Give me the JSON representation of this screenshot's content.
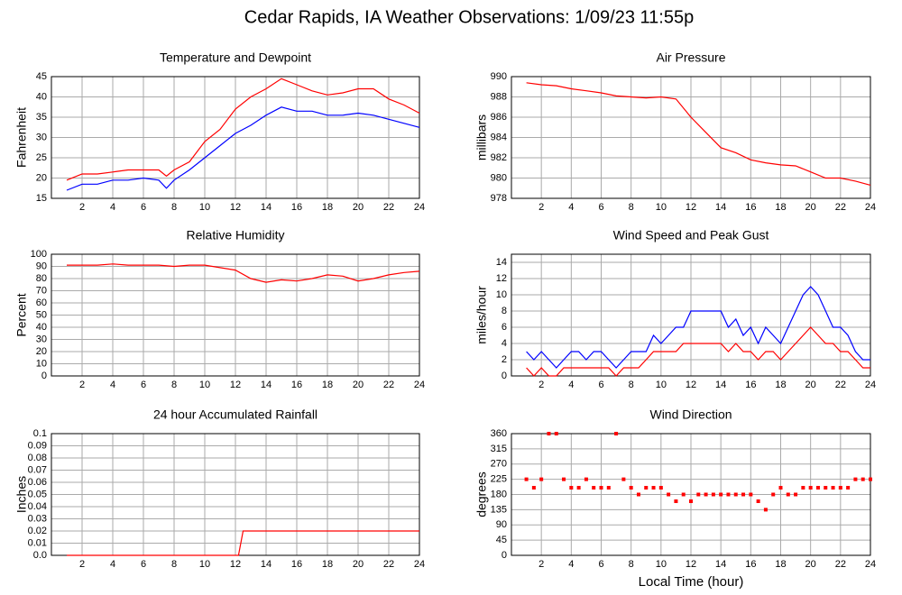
{
  "title": "Cedar Rapids, IA Weather Observations: 1/09/23 11:55p",
  "chart_data": [
    {
      "type": "line",
      "title": "Temperature and Dewpoint",
      "ylabel": "Fahrenheit",
      "xlim": [
        0,
        24
      ],
      "xticks": [
        2,
        4,
        6,
        8,
        10,
        12,
        14,
        16,
        18,
        20,
        22,
        24
      ],
      "ylim": [
        15,
        45
      ],
      "yticks": [
        15,
        20,
        25,
        30,
        35,
        40,
        45
      ],
      "grid": true,
      "x": [
        1,
        2,
        3,
        4,
        5,
        6,
        7,
        7.5,
        8,
        9,
        10,
        11,
        12,
        13,
        14,
        15,
        16,
        17,
        18,
        19,
        20,
        21,
        22,
        23,
        24
      ],
      "series": [
        {
          "color": "#ff0000",
          "values": [
            19.5,
            21,
            21,
            21.5,
            22,
            22,
            22,
            20.5,
            22,
            24,
            29,
            32,
            37,
            40,
            42,
            44.5,
            43,
            41.5,
            40.5,
            41,
            42,
            42,
            39.5,
            38,
            36
          ]
        },
        {
          "color": "#0000ff",
          "values": [
            17,
            18.5,
            18.5,
            19.5,
            19.5,
            20,
            19.5,
            17.5,
            19.5,
            22,
            25,
            28,
            31,
            33,
            35.5,
            37.5,
            36.5,
            36.5,
            35.5,
            35.5,
            36,
            35.5,
            34.5,
            33.5,
            32.5
          ]
        }
      ]
    },
    {
      "type": "line",
      "title": "Air Pressure",
      "ylabel": "millibars",
      "xlim": [
        0,
        24
      ],
      "xticks": [
        2,
        4,
        6,
        8,
        10,
        12,
        14,
        16,
        18,
        20,
        22,
        24
      ],
      "ylim": [
        978,
        990
      ],
      "yticks": [
        978,
        980,
        982,
        984,
        986,
        988,
        990
      ],
      "grid": true,
      "x": [
        1,
        2,
        3,
        4,
        5,
        6,
        7,
        8,
        9,
        10,
        11,
        12,
        13,
        14,
        15,
        16,
        17,
        18,
        19,
        20,
        21,
        22,
        23,
        24
      ],
      "series": [
        {
          "color": "#ff0000",
          "values": [
            989.4,
            989.2,
            989.1,
            988.8,
            988.6,
            988.4,
            988.1,
            988.0,
            987.9,
            988.0,
            987.8,
            986.0,
            984.5,
            983.0,
            982.5,
            981.8,
            981.5,
            981.3,
            981.2,
            980.6,
            980.0,
            980.0,
            979.7,
            979.3
          ]
        }
      ]
    },
    {
      "type": "line",
      "title": "Relative Humidity",
      "ylabel": "Percent",
      "xlim": [
        0,
        24
      ],
      "xticks": [
        2,
        4,
        6,
        8,
        10,
        12,
        14,
        16,
        18,
        20,
        22,
        24
      ],
      "ylim": [
        0,
        100
      ],
      "yticks": [
        0,
        10,
        20,
        30,
        40,
        50,
        60,
        70,
        80,
        90,
        100
      ],
      "grid": true,
      "x": [
        1,
        2,
        3,
        4,
        5,
        6,
        7,
        8,
        9,
        10,
        11,
        12,
        13,
        14,
        15,
        16,
        17,
        18,
        19,
        20,
        21,
        22,
        23,
        24
      ],
      "series": [
        {
          "color": "#ff0000",
          "values": [
            91,
            91,
            91,
            92,
            91,
            91,
            91,
            90,
            91,
            91,
            89,
            87,
            80,
            77,
            79,
            78,
            80,
            83,
            82,
            78,
            80,
            83,
            85,
            86
          ]
        }
      ]
    },
    {
      "type": "line",
      "title": "Wind Speed and Peak Gust",
      "ylabel": "miles/hour",
      "xlim": [
        0,
        24
      ],
      "xticks": [
        2,
        4,
        6,
        8,
        10,
        12,
        14,
        16,
        18,
        20,
        22,
        24
      ],
      "ylim": [
        0,
        15
      ],
      "yticks": [
        0,
        2,
        4,
        6,
        8,
        10,
        12,
        14
      ],
      "grid": true,
      "x": [
        1,
        1.5,
        2,
        2.5,
        3,
        3.5,
        4,
        4.5,
        5,
        5.5,
        6,
        6.5,
        7,
        7.5,
        8,
        8.5,
        9,
        9.5,
        10,
        10.5,
        11,
        11.5,
        12,
        12.5,
        13,
        13.5,
        14,
        14.5,
        15,
        15.5,
        16,
        16.5,
        17,
        17.5,
        18,
        18.5,
        19,
        19.5,
        20,
        20.5,
        21,
        21.5,
        22,
        22.5,
        23,
        23.5,
        24
      ],
      "series": [
        {
          "color": "#0000ff",
          "values": [
            3,
            2,
            3,
            2,
            1,
            2,
            3,
            3,
            2,
            3,
            3,
            2,
            1,
            2,
            3,
            3,
            3,
            5,
            4,
            5,
            6,
            6,
            8,
            8,
            8,
            8,
            8,
            6,
            7,
            5,
            6,
            4,
            6,
            5,
            4,
            6,
            8,
            10,
            11,
            10,
            8,
            6,
            6,
            5,
            3,
            2,
            2
          ]
        },
        {
          "color": "#ff0000",
          "values": [
            1,
            0,
            1,
            0,
            0,
            1,
            1,
            1,
            1,
            1,
            1,
            1,
            0,
            1,
            1,
            1,
            2,
            3,
            3,
            3,
            3,
            4,
            4,
            4,
            4,
            4,
            4,
            3,
            4,
            3,
            3,
            2,
            3,
            3,
            2,
            3,
            4,
            5,
            6,
            5,
            4,
            4,
            3,
            3,
            2,
            1,
            1
          ]
        }
      ]
    },
    {
      "type": "line",
      "title": "24 hour Accumulated Rainfall",
      "ylabel": "Inches",
      "xlim": [
        0,
        24
      ],
      "xticks": [
        2,
        4,
        6,
        8,
        10,
        12,
        14,
        16,
        18,
        20,
        22,
        24
      ],
      "ylim": [
        0,
        0.1
      ],
      "yticks": [
        {
          "value": 0,
          "label": "0.0"
        },
        0.01,
        0.02,
        0.03,
        0.04,
        0.05,
        0.06,
        0.07,
        0.08,
        0.09,
        0.1
      ],
      "grid": true,
      "x": [
        1,
        12.2,
        12.5,
        24
      ],
      "series": [
        {
          "color": "#ff0000",
          "values": [
            0,
            0,
            0.02,
            0.02
          ]
        }
      ]
    },
    {
      "type": "scatter",
      "title": "Wind Direction",
      "ylabel": "degrees",
      "xlabel": "Local Time (hour)",
      "xlim": [
        0,
        24
      ],
      "xticks": [
        2,
        4,
        6,
        8,
        10,
        12,
        14,
        16,
        18,
        20,
        22,
        24
      ],
      "ylim": [
        0,
        360
      ],
      "yticks": [
        0,
        45,
        90,
        135,
        180,
        225,
        270,
        315,
        360
      ],
      "grid": true,
      "x": [
        1,
        1.5,
        2,
        2.5,
        3,
        3.5,
        4,
        4.5,
        5,
        5.5,
        6,
        6.5,
        7,
        7.5,
        8,
        8.5,
        9,
        9.5,
        10,
        10.5,
        11,
        11.5,
        12,
        12.5,
        13,
        13.5,
        14,
        14.5,
        15,
        15.5,
        16,
        16.5,
        17,
        17.5,
        18,
        18.5,
        19,
        19.5,
        20,
        20.5,
        21,
        21.5,
        22,
        22.5,
        23,
        23.5,
        24
      ],
      "series": [
        {
          "color": "#ff0000",
          "values": [
            225,
            200,
            225,
            360,
            360,
            225,
            200,
            200,
            225,
            200,
            200,
            200,
            360,
            225,
            200,
            180,
            200,
            200,
            200,
            180,
            160,
            180,
            160,
            180,
            180,
            180,
            180,
            180,
            180,
            180,
            180,
            160,
            135,
            180,
            200,
            180,
            180,
            200,
            200,
            200,
            200,
            200,
            200,
            200,
            225,
            225,
            225
          ]
        }
      ]
    }
  ]
}
